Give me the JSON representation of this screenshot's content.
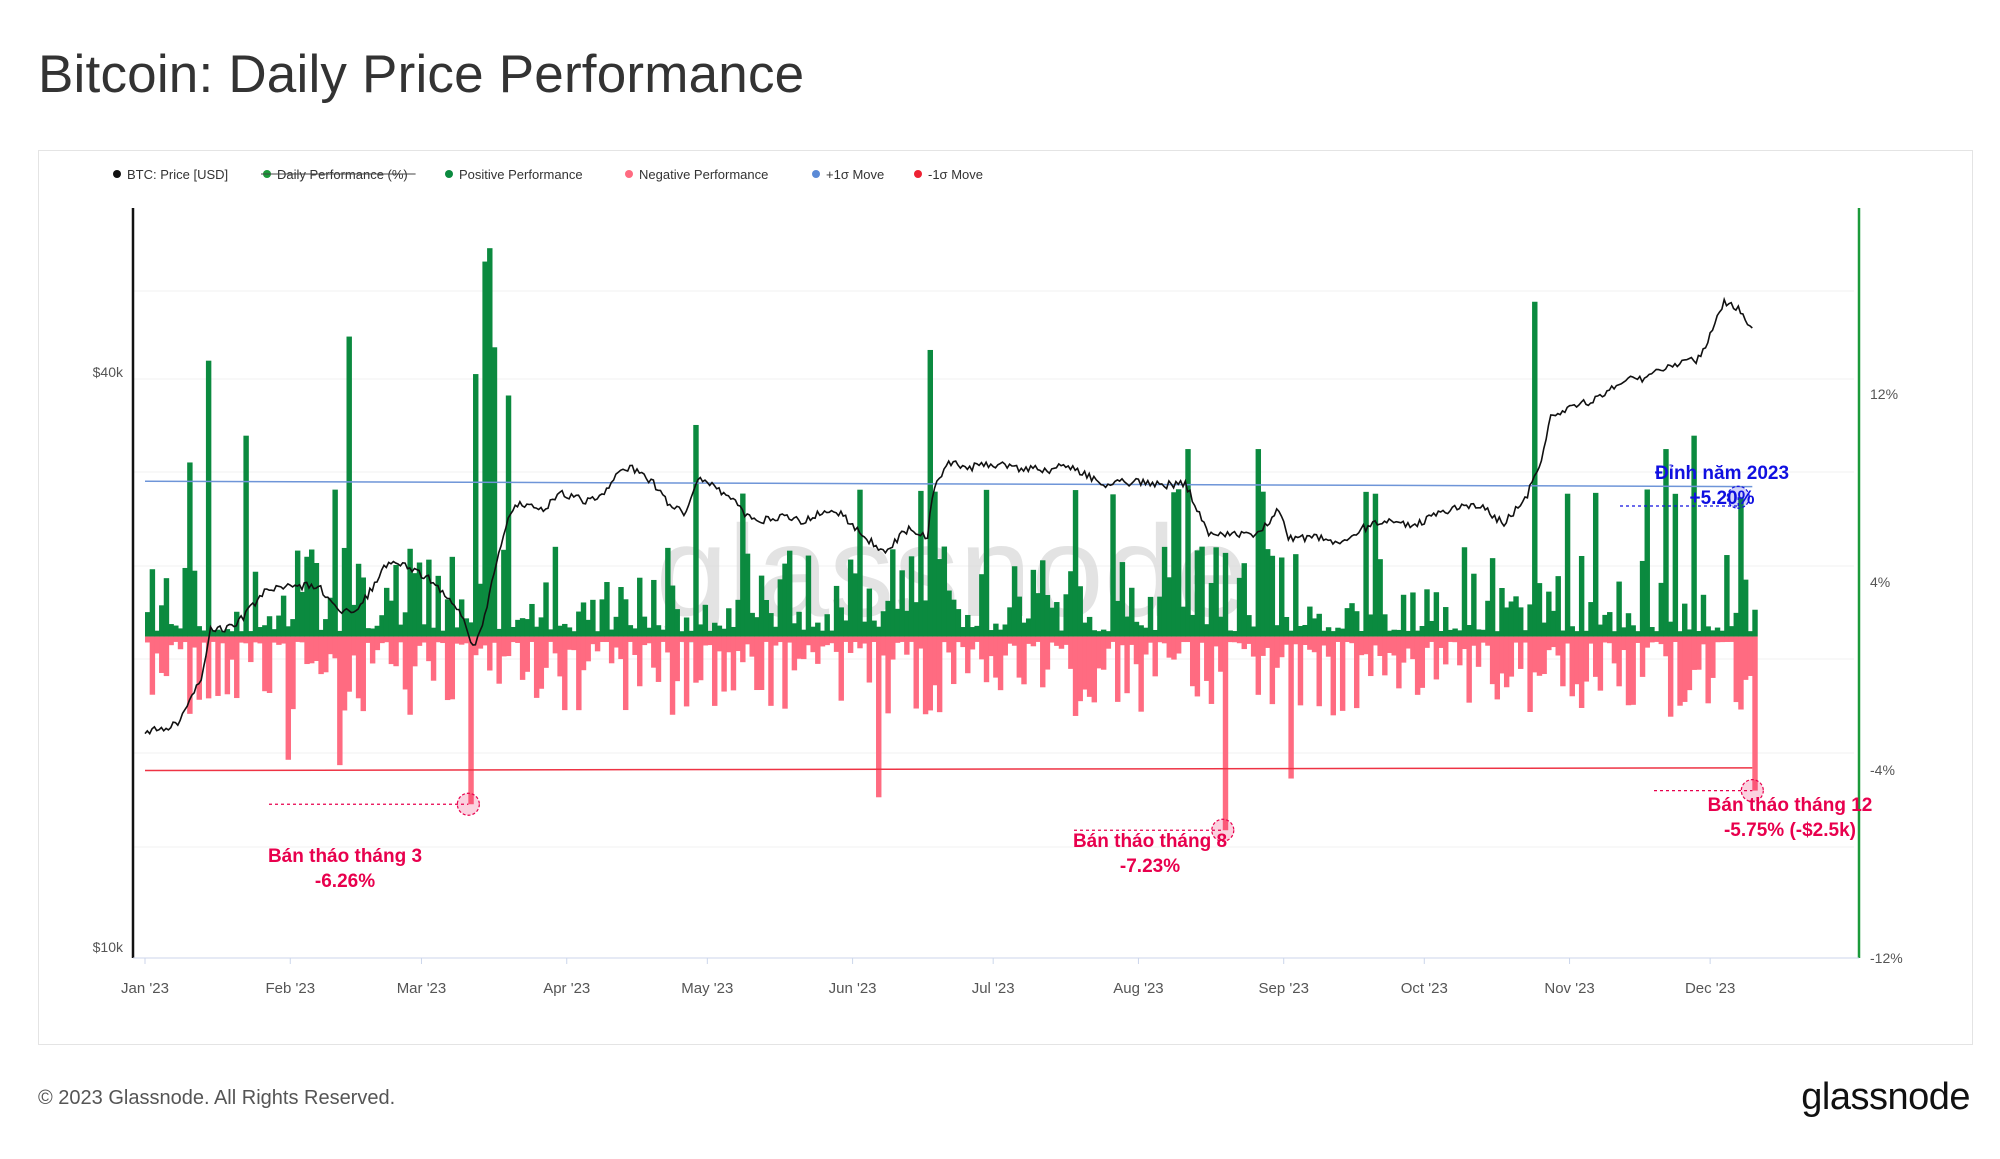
{
  "title": "Bitcoin: Daily Price Performance",
  "footer": {
    "copyright": "© 2023 Glassnode. All Rights Reserved.",
    "logo": "glassnode"
  },
  "watermark": "glassnode",
  "colors": {
    "price": "#111111",
    "positive": "#0b8a3f",
    "negative": "#ff6b81",
    "plus_sigma": "#6e95d8",
    "minus_sigma": "#ee3344",
    "annotation_red": "#e8004d",
    "annotation_blue": "#1010e0",
    "axis_right": "#1b9a3a"
  },
  "legend": [
    {
      "label": "BTC: Price [USD]",
      "color": "#111111",
      "struck": false
    },
    {
      "label": "Daily Performance (%)",
      "color": "#1b9a3a",
      "struck": true
    },
    {
      "label": "Positive Performance",
      "color": "#0b8a3f",
      "struck": false
    },
    {
      "label": "Negative Performance",
      "color": "#ff6b81",
      "struck": false
    },
    {
      "label": "+1σ Move",
      "color": "#5b8ad6",
      "struck": false
    },
    {
      "label": "-1σ Move",
      "color": "#ee2233",
      "struck": false
    }
  ],
  "chart_data": {
    "type": "bar",
    "title": "Bitcoin: Daily Price Performance",
    "x_ticks": [
      "Jan '23",
      "Feb '23",
      "Mar '23",
      "Apr '23",
      "May '23",
      "Jun '23",
      "Jul '23",
      "Aug '23",
      "Sep '23",
      "Oct '23",
      "Nov '23",
      "Dec '23"
    ],
    "left_axis": {
      "scale": "log",
      "ticks": [
        "$10k",
        "$40k"
      ],
      "ylim": [
        10000,
        50000
      ]
    },
    "right_axis": {
      "ticks": [
        "12%",
        "4%",
        "-4%",
        "-12%"
      ],
      "ylim": [
        -12,
        16
      ]
    },
    "plus_sigma_move": [
      [
        0,
        5.8
      ],
      [
        343,
        5.6
      ]
    ],
    "minus_sigma_move": [
      [
        0,
        -5.0
      ],
      [
        343,
        -4.9
      ]
    ],
    "price_usd": [
      [
        0,
        16600
      ],
      [
        7,
        17000
      ],
      [
        12,
        18900
      ],
      [
        14,
        21000
      ],
      [
        19,
        21100
      ],
      [
        26,
        23000
      ],
      [
        30,
        23100
      ],
      [
        37,
        23200
      ],
      [
        41,
        22000
      ],
      [
        45,
        21800
      ],
      [
        47,
        22500
      ],
      [
        52,
        24500
      ],
      [
        55,
        24300
      ],
      [
        59,
        23800
      ],
      [
        62,
        23300
      ],
      [
        66,
        22300
      ],
      [
        68,
        21500
      ],
      [
        70,
        20100
      ],
      [
        73,
        22000
      ],
      [
        75,
        24500
      ],
      [
        78,
        27300
      ],
      [
        80,
        28000
      ],
      [
        85,
        27600
      ],
      [
        89,
        28500
      ],
      [
        94,
        28100
      ],
      [
        98,
        28400
      ],
      [
        101,
        30100
      ],
      [
        104,
        30300
      ],
      [
        108,
        29400
      ],
      [
        112,
        27800
      ],
      [
        115,
        27300
      ],
      [
        118,
        29400
      ],
      [
        121,
        29100
      ],
      [
        125,
        28200
      ],
      [
        129,
        27000
      ],
      [
        133,
        26900
      ],
      [
        137,
        27100
      ],
      [
        141,
        26800
      ],
      [
        145,
        27600
      ],
      [
        149,
        27200
      ],
      [
        153,
        25900
      ],
      [
        158,
        25100
      ],
      [
        163,
        26400
      ],
      [
        167,
        25900
      ],
      [
        168,
        28400
      ],
      [
        171,
        30600
      ],
      [
        175,
        30300
      ],
      [
        180,
        30400
      ],
      [
        183,
        30400
      ],
      [
        188,
        30200
      ],
      [
        193,
        30100
      ],
      [
        196,
        30400
      ],
      [
        200,
        29900
      ],
      [
        205,
        29200
      ],
      [
        211,
        29300
      ],
      [
        217,
        29100
      ],
      [
        222,
        29200
      ],
      [
        227,
        26000
      ],
      [
        232,
        26100
      ],
      [
        237,
        25900
      ],
      [
        242,
        27500
      ],
      [
        244,
        25800
      ],
      [
        250,
        25900
      ],
      [
        255,
        25600
      ],
      [
        260,
        26400
      ],
      [
        266,
        26900
      ],
      [
        271,
        26600
      ],
      [
        276,
        27300
      ],
      [
        281,
        27800
      ],
      [
        286,
        27600
      ],
      [
        290,
        26600
      ],
      [
        295,
        28500
      ],
      [
        298,
        30500
      ],
      [
        300,
        34000
      ],
      [
        303,
        34500
      ],
      [
        307,
        35000
      ],
      [
        311,
        35500
      ],
      [
        316,
        37000
      ],
      [
        320,
        37000
      ],
      [
        324,
        37800
      ],
      [
        328,
        38500
      ],
      [
        332,
        38700
      ],
      [
        335,
        42000
      ],
      [
        337,
        44000
      ],
      [
        340,
        43500
      ],
      [
        343,
        41500
      ]
    ],
    "notable_moves_pct": [
      {
        "day": 9,
        "value": 6.5
      },
      {
        "day": 13,
        "value": 10.3
      },
      {
        "day": 21,
        "value": 7.5
      },
      {
        "day": 43,
        "value": 11.2
      },
      {
        "day": 70,
        "value": 9.8
      },
      {
        "day": 72,
        "value": 14.0
      },
      {
        "day": 73,
        "value": 14.5
      },
      {
        "day": 74,
        "value": 10.8
      },
      {
        "day": 77,
        "value": 9.0
      },
      {
        "day": 117,
        "value": 7.9
      },
      {
        "day": 167,
        "value": 10.7
      },
      {
        "day": 222,
        "value": 7.0
      },
      {
        "day": 237,
        "value": 7.0
      },
      {
        "day": 296,
        "value": 12.5
      },
      {
        "day": 324,
        "value": 7.0
      },
      {
        "day": 330,
        "value": 7.5
      },
      {
        "day": 340,
        "value": 5.2
      },
      {
        "day": 69,
        "value": -6.26
      },
      {
        "day": 230,
        "value": -7.23
      },
      {
        "day": 343,
        "value": -5.75
      },
      {
        "day": 30,
        "value": -4.6
      },
      {
        "day": 41,
        "value": -4.8
      },
      {
        "day": 156,
        "value": -6.0
      },
      {
        "day": 244,
        "value": -5.3
      }
    ]
  },
  "annotations": {
    "mar": {
      "line1": "Bán tháo tháng 3",
      "line2": "-6.26%"
    },
    "aug": {
      "line1": "Bán tháo tháng 8",
      "line2": "-7.23%"
    },
    "dec": {
      "line1": "Bán tháo tháng 12",
      "line2": "-5.75% (-$2.5k)"
    },
    "peak": {
      "line1": "Đỉnh năm 2023",
      "line2": "+5.20%"
    }
  }
}
